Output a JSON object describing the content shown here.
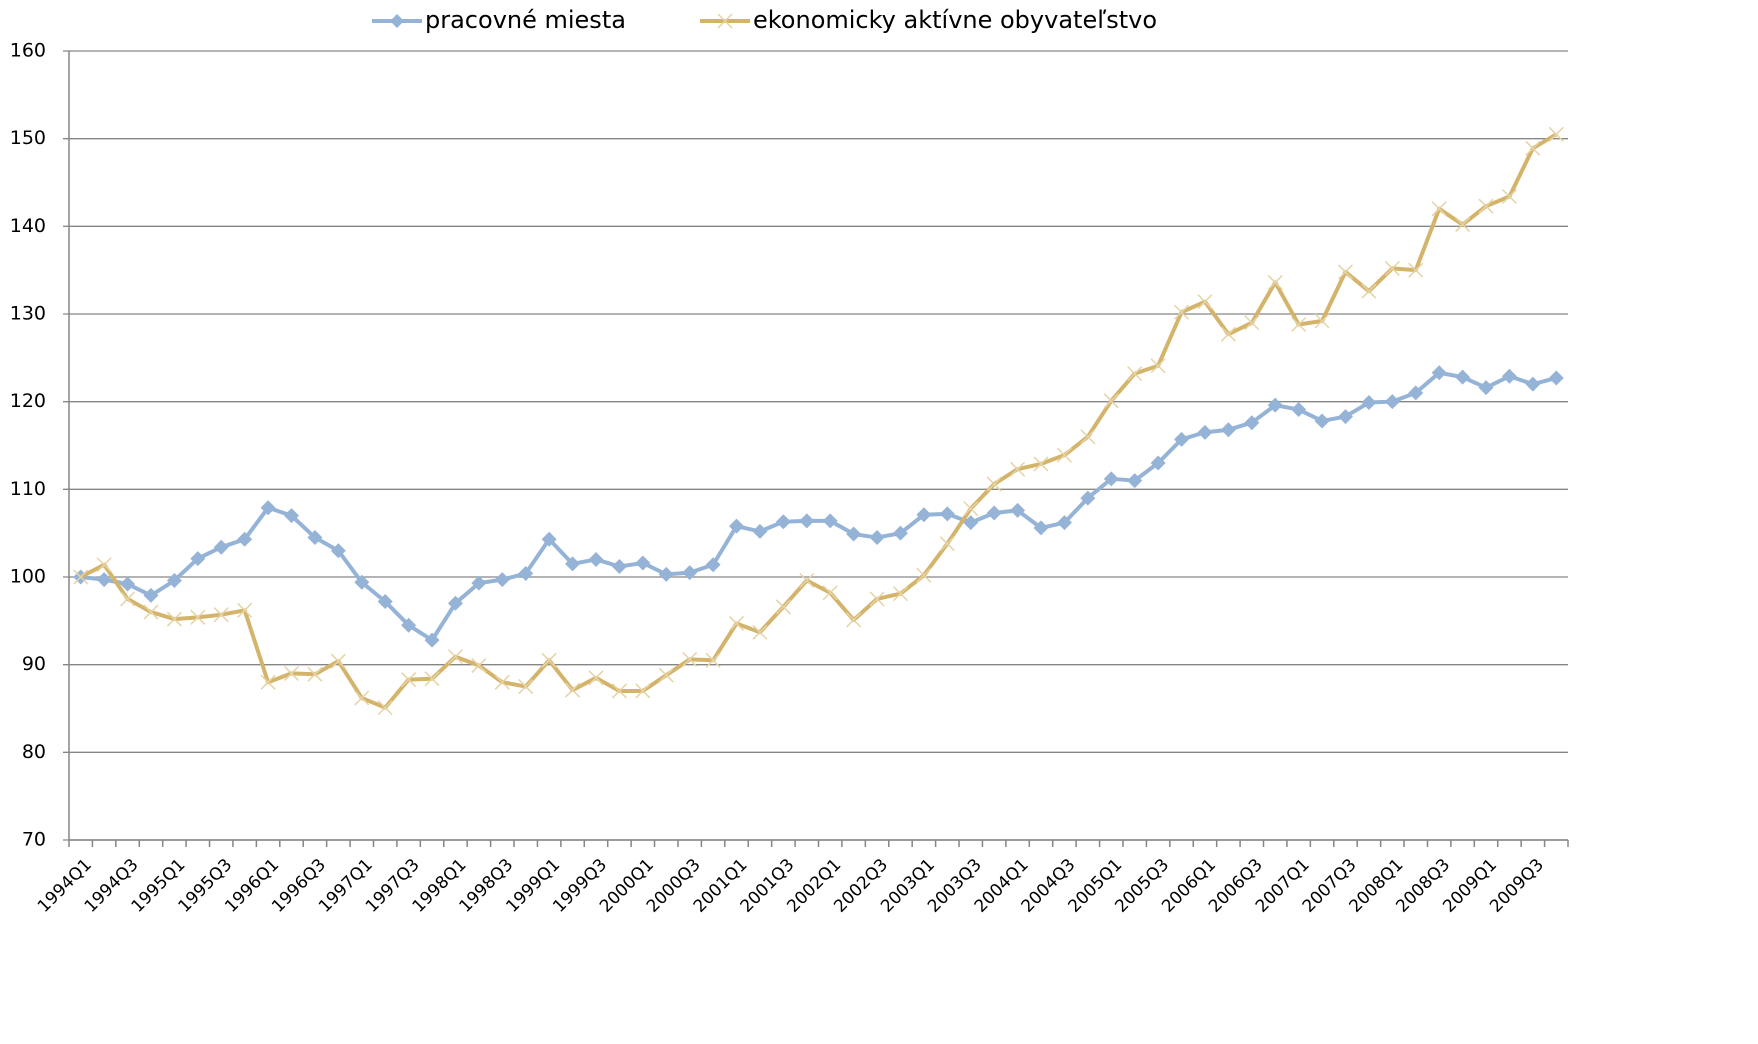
{
  "chart_data": {
    "type": "line",
    "categories": [
      "1994Q1",
      null,
      "1994Q3",
      null,
      "1995Q1",
      null,
      "1995Q3",
      null,
      "1996Q1",
      null,
      "1996Q3",
      null,
      "1997Q1",
      null,
      "1997Q3",
      null,
      "1998Q1",
      null,
      "1998Q3",
      null,
      "1999Q1",
      null,
      "1999Q3",
      null,
      "2000Q1",
      null,
      "2000Q3",
      null,
      "2001Q1",
      null,
      "2001Q3",
      null,
      "2002Q1",
      null,
      "2002Q3",
      null,
      "2003Q1",
      null,
      "2003Q3",
      null,
      "2004Q1",
      null,
      "2004Q3",
      null,
      "2005Q1",
      null,
      "2005Q3",
      null,
      "2006Q1",
      null,
      "2006Q3",
      null,
      "2007Q1",
      null,
      "2007Q3",
      null,
      "2008Q1",
      null,
      "2008Q3",
      null,
      "2009Q1",
      null,
      "2009Q3",
      null
    ],
    "series": [
      {
        "name": "pracovné miesta",
        "color": "#95b3d7",
        "marker": "diamond",
        "values": [
          100,
          99.7,
          99.2,
          97.9,
          99.6,
          102.1,
          103.4,
          104.3,
          107.9,
          107,
          104.5,
          103,
          99.4,
          97.2,
          94.5,
          92.8,
          97,
          99.3,
          99.7,
          100.4,
          104.3,
          101.5,
          102,
          101.2,
          101.6,
          100.3,
          100.5,
          101.4,
          105.8,
          105.2,
          106.3,
          106.4,
          106.4,
          104.9,
          104.5,
          105,
          107.1,
          107.2,
          106.2,
          107.3,
          107.6,
          105.6,
          106.2,
          109,
          111.2,
          111,
          113,
          115.7,
          116.5,
          116.8,
          117.6,
          119.6,
          119.1,
          117.8,
          118.3,
          119.9,
          120,
          121,
          123.3,
          122.8,
          121.6,
          122.9,
          122,
          122.7
        ]
      },
      {
        "name": "ekonomicky aktívne obyvateľstvo",
        "color": "#d4b46a",
        "marker": "x",
        "values": [
          100,
          101.4,
          97.5,
          96,
          95.2,
          95.4,
          95.7,
          96.2,
          88,
          89,
          88.9,
          90.4,
          86.2,
          85.1,
          88.3,
          88.4,
          90.9,
          89.9,
          88,
          87.5,
          90.5,
          87.1,
          88.5,
          87,
          87,
          88.8,
          90.6,
          90.5,
          94.7,
          93.7,
          96.6,
          99.6,
          98.2,
          95.1,
          97.5,
          98.1,
          100.2,
          103.8,
          107.8,
          110.6,
          112.3,
          112.9,
          113.9,
          116,
          120.1,
          123.2,
          124.1,
          130.2,
          131.4,
          127.7,
          129,
          133.6,
          128.8,
          129.2,
          134.8,
          132.6,
          135.2,
          135,
          142,
          140.2,
          142.3,
          143.4,
          148.9,
          150.5
        ]
      }
    ],
    "ylim": [
      70,
      160
    ],
    "yticks": [
      70,
      80,
      90,
      100,
      110,
      120,
      130,
      140,
      150,
      160
    ],
    "grid": true,
    "legend": "top"
  }
}
